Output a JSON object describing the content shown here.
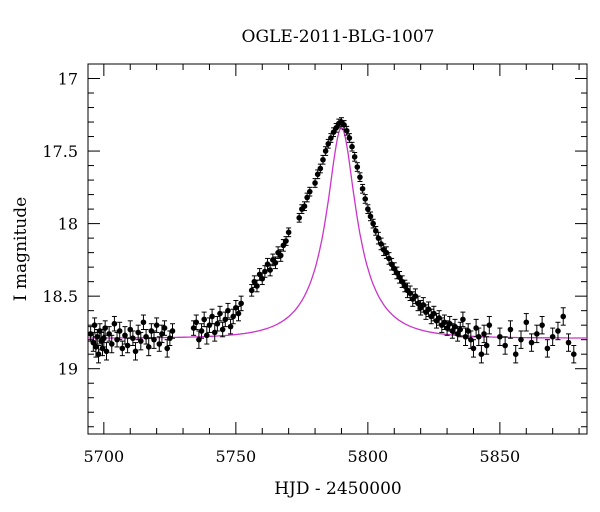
{
  "chart_data": {
    "type": "scatter",
    "title": "OGLE-2011-BLG-1007",
    "xlabel": "HJD - 2450000",
    "ylabel": "I magnitude",
    "xlim": [
      5694,
      5883
    ],
    "ylim": [
      19.45,
      16.9
    ],
    "y_inverted": true,
    "x_ticks": [
      5700,
      5750,
      5800,
      5850
    ],
    "x_tick_labels": [
      "5700",
      "5750",
      "5800",
      "5850"
    ],
    "y_ticks": [
      17,
      17.5,
      18,
      18.5,
      19
    ],
    "y_tick_labels": [
      "17",
      "17.5",
      "18",
      "18.5",
      "19"
    ],
    "grid": false,
    "model": {
      "color": "#cc33cc",
      "baseline": 18.79,
      "peak_mag": 17.34,
      "t0": 5790,
      "u0": 0.3,
      "tE": 18
    },
    "series": [
      {
        "marker": "filled-circle-with-errorbars",
        "color": "#000000",
        "points": [
          [
            5695,
            18.76,
            0.05
          ],
          [
            5696,
            18.82,
            0.06
          ],
          [
            5696.5,
            18.7,
            0.05
          ],
          [
            5697,
            18.85,
            0.07
          ],
          [
            5697.5,
            18.78,
            0.05
          ],
          [
            5698,
            18.9,
            0.06
          ],
          [
            5698.5,
            18.74,
            0.05
          ],
          [
            5699,
            18.81,
            0.06
          ],
          [
            5699.5,
            18.86,
            0.05
          ],
          [
            5700,
            18.79,
            0.06
          ],
          [
            5700.5,
            18.72,
            0.05
          ],
          [
            5701,
            18.88,
            0.06
          ],
          [
            5702,
            18.76,
            0.05
          ],
          [
            5703,
            18.83,
            0.06
          ],
          [
            5704,
            18.69,
            0.05
          ],
          [
            5705,
            18.8,
            0.05
          ],
          [
            5706,
            18.74,
            0.06
          ],
          [
            5707,
            18.86,
            0.05
          ],
          [
            5708,
            18.77,
            0.06
          ],
          [
            5709,
            18.84,
            0.05
          ],
          [
            5710,
            18.73,
            0.06
          ],
          [
            5711,
            18.79,
            0.05
          ],
          [
            5712,
            18.88,
            0.06
          ],
          [
            5713,
            18.75,
            0.05
          ],
          [
            5714,
            18.81,
            0.06
          ],
          [
            5715,
            18.68,
            0.05
          ],
          [
            5716,
            18.78,
            0.05
          ],
          [
            5717,
            18.85,
            0.06
          ],
          [
            5718,
            18.74,
            0.05
          ],
          [
            5719,
            18.8,
            0.06
          ],
          [
            5720,
            18.7,
            0.05
          ],
          [
            5721,
            18.83,
            0.05
          ],
          [
            5722,
            18.76,
            0.06
          ],
          [
            5723,
            18.72,
            0.05
          ],
          [
            5724,
            18.86,
            0.06
          ],
          [
            5725,
            18.79,
            0.05
          ],
          [
            5726,
            18.74,
            0.05
          ],
          [
            5734,
            18.72,
            0.05
          ],
          [
            5735,
            18.68,
            0.05
          ],
          [
            5736,
            18.8,
            0.06
          ],
          [
            5737,
            18.74,
            0.05
          ],
          [
            5738,
            18.66,
            0.05
          ],
          [
            5739,
            18.77,
            0.06
          ],
          [
            5740,
            18.7,
            0.05
          ],
          [
            5741,
            18.64,
            0.05
          ],
          [
            5742,
            18.75,
            0.06
          ],
          [
            5743,
            18.69,
            0.05
          ],
          [
            5744,
            18.62,
            0.05
          ],
          [
            5745,
            18.73,
            0.05
          ],
          [
            5746,
            18.66,
            0.05
          ],
          [
            5747,
            18.6,
            0.05
          ],
          [
            5748,
            18.71,
            0.05
          ],
          [
            5749,
            18.64,
            0.05
          ],
          [
            5750,
            18.58,
            0.05
          ],
          [
            5751,
            18.62,
            0.05
          ],
          [
            5752,
            18.55,
            0.05
          ],
          [
            5756,
            18.46,
            0.04
          ],
          [
            5757,
            18.4,
            0.04
          ],
          [
            5758,
            18.43,
            0.04
          ],
          [
            5759,
            18.35,
            0.04
          ],
          [
            5760,
            18.38,
            0.04
          ],
          [
            5761,
            18.33,
            0.04
          ],
          [
            5762,
            18.28,
            0.04
          ],
          [
            5763,
            18.32,
            0.04
          ],
          [
            5764,
            18.25,
            0.04
          ],
          [
            5765,
            18.27,
            0.04
          ],
          [
            5766,
            18.2,
            0.04
          ],
          [
            5767,
            18.22,
            0.04
          ],
          [
            5768,
            18.15,
            0.04
          ],
          [
            5769,
            18.12,
            0.03
          ],
          [
            5770,
            18.06,
            0.03
          ],
          [
            5774,
            17.96,
            0.03
          ],
          [
            5775,
            17.9,
            0.03
          ],
          [
            5776,
            17.88,
            0.03
          ],
          [
            5777,
            17.82,
            0.03
          ],
          [
            5778,
            17.78,
            0.03
          ],
          [
            5780,
            17.72,
            0.03
          ],
          [
            5781,
            17.66,
            0.03
          ],
          [
            5782,
            17.62,
            0.03
          ],
          [
            5783,
            17.56,
            0.03
          ],
          [
            5784,
            17.5,
            0.03
          ],
          [
            5785,
            17.45,
            0.03
          ],
          [
            5786,
            17.41,
            0.03
          ],
          [
            5787,
            17.37,
            0.03
          ],
          [
            5788,
            17.34,
            0.03
          ],
          [
            5789,
            17.31,
            0.03
          ],
          [
            5790,
            17.3,
            0.03
          ],
          [
            5791,
            17.32,
            0.03
          ],
          [
            5792,
            17.36,
            0.03
          ],
          [
            5793,
            17.41,
            0.03
          ],
          [
            5794,
            17.47,
            0.03
          ],
          [
            5795,
            17.54,
            0.03
          ],
          [
            5796,
            17.61,
            0.03
          ],
          [
            5797,
            17.68,
            0.03
          ],
          [
            5798,
            17.76,
            0.03
          ],
          [
            5799,
            17.83,
            0.03
          ],
          [
            5800,
            17.9,
            0.03
          ],
          [
            5801,
            17.95,
            0.03
          ],
          [
            5802,
            18.0,
            0.03
          ],
          [
            5803,
            18.05,
            0.03
          ],
          [
            5804,
            18.1,
            0.04
          ],
          [
            5805,
            18.14,
            0.04
          ],
          [
            5806,
            18.18,
            0.04
          ],
          [
            5807,
            18.2,
            0.04
          ],
          [
            5808,
            18.24,
            0.04
          ],
          [
            5809,
            18.28,
            0.04
          ],
          [
            5810,
            18.31,
            0.04
          ],
          [
            5811,
            18.34,
            0.04
          ],
          [
            5812,
            18.37,
            0.04
          ],
          [
            5813,
            18.4,
            0.04
          ],
          [
            5814,
            18.43,
            0.04
          ],
          [
            5815,
            18.46,
            0.05
          ],
          [
            5816,
            18.48,
            0.05
          ],
          [
            5817,
            18.52,
            0.05
          ],
          [
            5818,
            18.5,
            0.05
          ],
          [
            5819,
            18.55,
            0.05
          ],
          [
            5820,
            18.58,
            0.05
          ],
          [
            5821,
            18.56,
            0.05
          ],
          [
            5822,
            18.61,
            0.05
          ],
          [
            5823,
            18.59,
            0.05
          ],
          [
            5824,
            18.64,
            0.05
          ],
          [
            5825,
            18.62,
            0.05
          ],
          [
            5826,
            18.67,
            0.05
          ],
          [
            5827,
            18.65,
            0.05
          ],
          [
            5828,
            18.7,
            0.05
          ],
          [
            5829,
            18.68,
            0.05
          ],
          [
            5830,
            18.72,
            0.05
          ],
          [
            5831,
            18.69,
            0.05
          ],
          [
            5832,
            18.74,
            0.05
          ],
          [
            5833,
            18.71,
            0.05
          ],
          [
            5834,
            18.76,
            0.05
          ],
          [
            5835,
            18.73,
            0.05
          ],
          [
            5836,
            18.66,
            0.05
          ],
          [
            5837,
            18.78,
            0.06
          ],
          [
            5838,
            18.74,
            0.05
          ],
          [
            5839,
            18.8,
            0.06
          ],
          [
            5840,
            18.86,
            0.06
          ],
          [
            5841,
            18.72,
            0.06
          ],
          [
            5842,
            18.78,
            0.06
          ],
          [
            5843,
            18.9,
            0.06
          ],
          [
            5844,
            18.76,
            0.06
          ],
          [
            5845,
            18.84,
            0.06
          ],
          [
            5846,
            18.7,
            0.06
          ],
          [
            5850,
            18.78,
            0.06
          ],
          [
            5852,
            18.84,
            0.06
          ],
          [
            5854,
            18.73,
            0.06
          ],
          [
            5856,
            18.9,
            0.06
          ],
          [
            5858,
            18.8,
            0.06
          ],
          [
            5860,
            18.68,
            0.06
          ],
          [
            5862,
            18.82,
            0.06
          ],
          [
            5864,
            18.76,
            0.06
          ],
          [
            5866,
            18.7,
            0.06
          ],
          [
            5868,
            18.86,
            0.06
          ],
          [
            5870,
            18.78,
            0.06
          ],
          [
            5872,
            18.74,
            0.06
          ],
          [
            5874,
            18.64,
            0.06
          ],
          [
            5876,
            18.82,
            0.06
          ],
          [
            5878,
            18.9,
            0.06
          ]
        ]
      }
    ]
  }
}
